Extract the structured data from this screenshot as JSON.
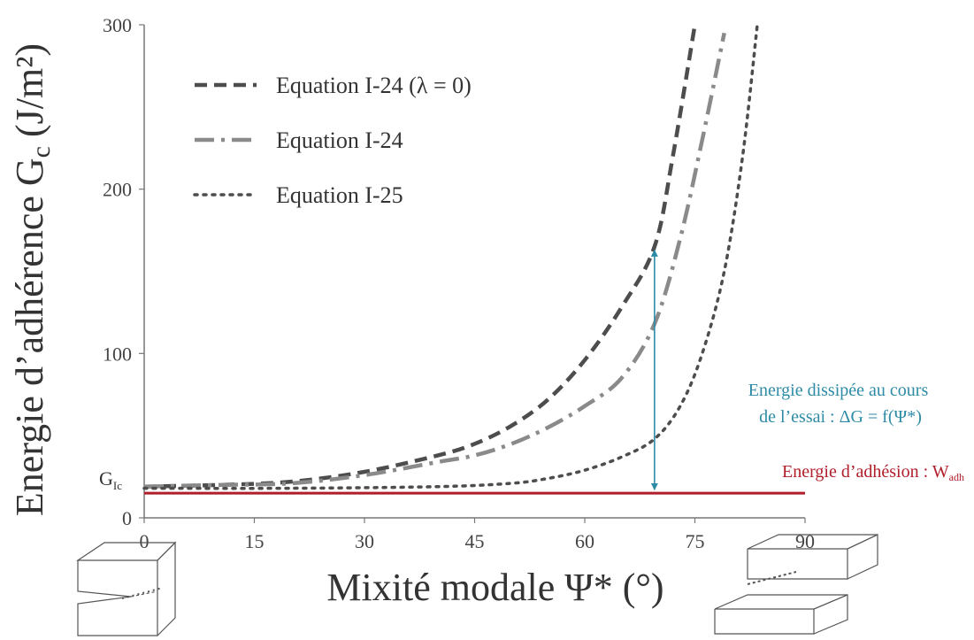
{
  "chart_data": {
    "type": "line",
    "xlabel": "Mixité modale Ψ* (°)",
    "ylabel": "Energie d’adhérence G",
    "ylabel_subscript": "c",
    "ylabel_unit": "(J/m²)",
    "xlim": [
      0,
      90
    ],
    "ylim": [
      0,
      300
    ],
    "x_ticks": [
      0,
      15,
      30,
      45,
      60,
      75,
      90
    ],
    "y_ticks": [
      0,
      100,
      200,
      300
    ],
    "grid": false,
    "legend_position": "top-left",
    "series": [
      {
        "name": "Equation I-24 (λ = 0)",
        "style": "dashed",
        "color": "#4d4d4d",
        "points": [
          [
            0,
            19
          ],
          [
            10,
            20
          ],
          [
            20,
            22
          ],
          [
            30,
            28
          ],
          [
            40,
            38
          ],
          [
            45,
            45
          ],
          [
            50,
            56
          ],
          [
            55,
            72
          ],
          [
            60,
            96
          ],
          [
            65,
            128
          ],
          [
            69.5,
            165
          ],
          [
            72,
            220
          ],
          [
            75,
            300
          ]
        ]
      },
      {
        "name": "Equation I-24",
        "style": "dash-dot",
        "color": "#8a8a8a",
        "points": [
          [
            0,
            19
          ],
          [
            10,
            20
          ],
          [
            20,
            21
          ],
          [
            30,
            26
          ],
          [
            40,
            34
          ],
          [
            45,
            38
          ],
          [
            50,
            45
          ],
          [
            55,
            55
          ],
          [
            60,
            68
          ],
          [
            65,
            85
          ],
          [
            69.5,
            118
          ],
          [
            73,
            170
          ],
          [
            76,
            230
          ],
          [
            79,
            295
          ]
        ]
      },
      {
        "name": "Equation I-25",
        "style": "dotted",
        "color": "#4d4d4d",
        "points": [
          [
            0,
            18
          ],
          [
            20,
            18
          ],
          [
            40,
            19
          ],
          [
            50,
            21
          ],
          [
            55,
            24
          ],
          [
            60,
            29
          ],
          [
            65,
            37
          ],
          [
            69.5,
            48
          ],
          [
            73,
            68
          ],
          [
            76,
            100
          ],
          [
            79,
            150
          ],
          [
            81.5,
            220
          ],
          [
            83.5,
            300
          ]
        ]
      }
    ],
    "hlines": [
      {
        "label": "Energie d’adhésion : W",
        "label_subscript": "adh",
        "y": 15,
        "color": "#b01e2a"
      }
    ],
    "annotations": [
      {
        "text_line1": "Energie dissipée au cours",
        "text_line2": "de l’essai : ΔG = f(Ψ*)",
        "color": "#2e8ba6",
        "arrow_x": 69.5,
        "arrow_y_from": 15,
        "arrow_y_to": 165
      },
      {
        "text": "G",
        "subscript": "Ic",
        "y": 19,
        "color": "#333333"
      }
    ]
  }
}
